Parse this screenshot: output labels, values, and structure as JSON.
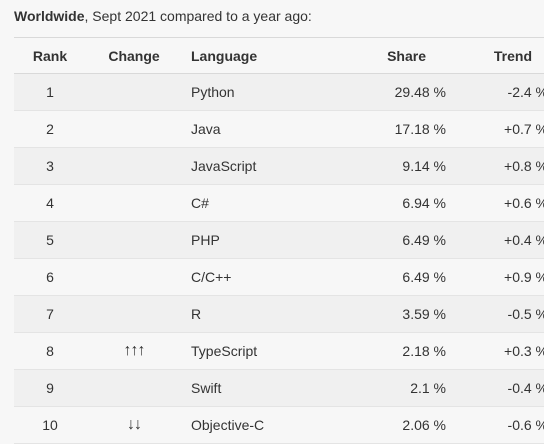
{
  "caption": {
    "strong": "Worldwide",
    "rest": ", Sept 2021 compared to a year ago:"
  },
  "table": {
    "headers": {
      "rank": "Rank",
      "change": "Change",
      "language": "Language",
      "share": "Share",
      "trend": "Trend"
    },
    "rows": [
      {
        "rank": "1",
        "change": "",
        "language": "Python",
        "share": "29.48 %",
        "trend": "-2.4 %"
      },
      {
        "rank": "2",
        "change": "",
        "language": "Java",
        "share": "17.18 %",
        "trend": "+0.7 %"
      },
      {
        "rank": "3",
        "change": "",
        "language": "JavaScript",
        "share": "9.14 %",
        "trend": "+0.8 %"
      },
      {
        "rank": "4",
        "change": "",
        "language": "C#",
        "share": "6.94 %",
        "trend": "+0.6 %"
      },
      {
        "rank": "5",
        "change": "",
        "language": "PHP",
        "share": "6.49 %",
        "trend": "+0.4 %"
      },
      {
        "rank": "6",
        "change": "",
        "language": "C/C++",
        "share": "6.49 %",
        "trend": "+0.9 %"
      },
      {
        "rank": "7",
        "change": "",
        "language": "R",
        "share": "3.59 %",
        "trend": "-0.5 %"
      },
      {
        "rank": "8",
        "change": "↑↑↑",
        "language": "TypeScript",
        "share": "2.18 %",
        "trend": "+0.3 %"
      },
      {
        "rank": "9",
        "change": "",
        "language": "Swift",
        "share": "2.1 %",
        "trend": "-0.4 %"
      },
      {
        "rank": "10",
        "change": "↓↓",
        "language": "Objective-C",
        "share": "2.06 %",
        "trend": "-0.6 %"
      }
    ]
  }
}
